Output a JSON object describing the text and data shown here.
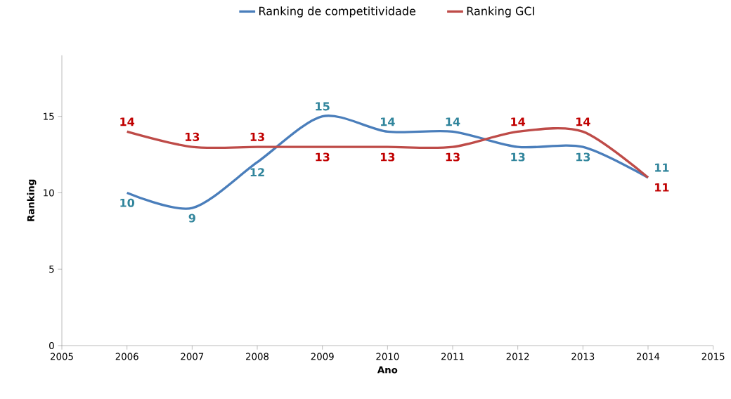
{
  "chart_data": {
    "type": "line",
    "xlabel": "Ano",
    "ylabel": "Ranking",
    "x": [
      2006,
      2007,
      2008,
      2009,
      2010,
      2011,
      2012,
      2013,
      2014
    ],
    "series": [
      {
        "name": "Ranking de competitividade",
        "color": "#4a7ebb",
        "values": [
          10,
          9,
          12,
          15,
          14,
          14,
          13,
          13,
          11
        ]
      },
      {
        "name": "Ranking GCI",
        "color": "#be4b48",
        "values": [
          14,
          13,
          13,
          13,
          13,
          13,
          14,
          14,
          11
        ]
      }
    ],
    "xlim": [
      2005,
      2015
    ],
    "xticks": [
      2005,
      2006,
      2007,
      2008,
      2009,
      2010,
      2011,
      2012,
      2013,
      2014,
      2015
    ],
    "ylim": [
      0,
      19
    ],
    "yticks": [
      0,
      5,
      10,
      15
    ],
    "grid": false,
    "legend": "top",
    "marker": "none",
    "line_style": "solid",
    "data_labels": true
  }
}
